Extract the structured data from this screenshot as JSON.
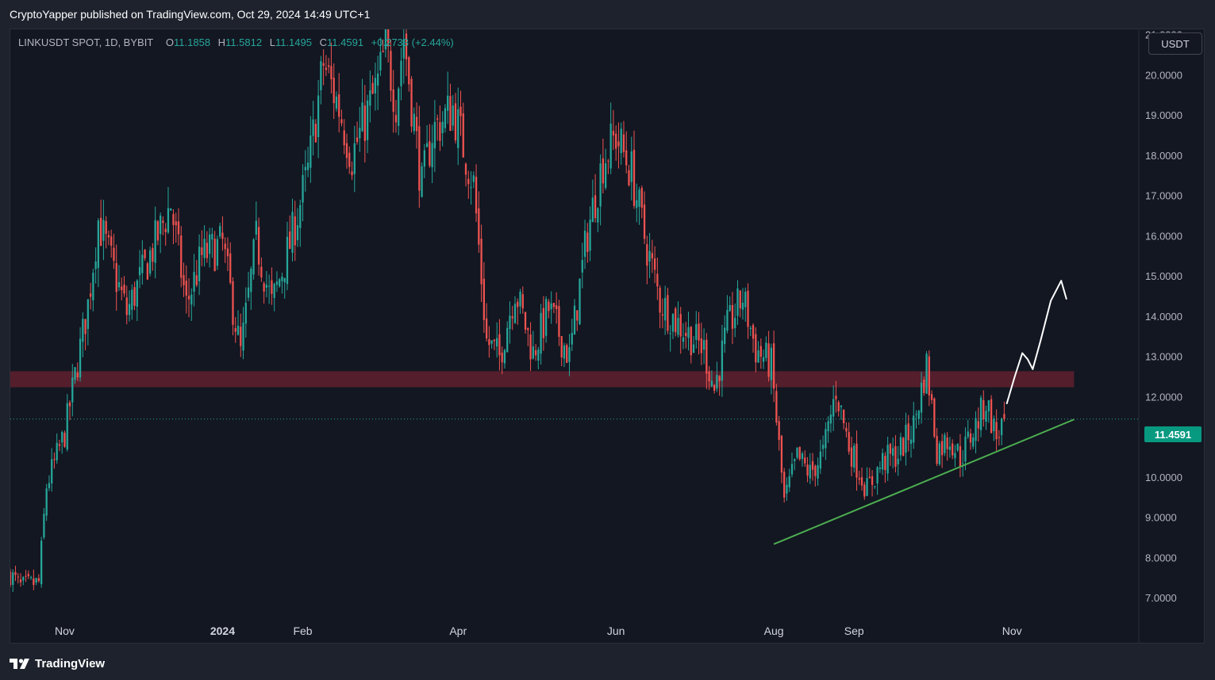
{
  "header": {
    "publish_text": "CryptoYapper published on TradingView.com, Oct 29, 2024 14:49 UTC+1"
  },
  "legend": {
    "symbol": "LINKUSDT SPOT, 1D, BYBIT",
    "open_label": "O",
    "open": "11.1858",
    "high_label": "H",
    "high": "11.5812",
    "low_label": "L",
    "low": "11.1495",
    "close_label": "C",
    "close": "11.4591",
    "change": "+0.2733 (+2.44%)"
  },
  "currency_button": "USDT",
  "current_price_label": "11.4591",
  "footer": {
    "brand": "TradingView"
  },
  "colors": {
    "up": "#26a69a",
    "down": "#ef5350",
    "background": "#131722",
    "resistance_zone": "#5c1f2d",
    "trendline": "#4caf50",
    "annotation_arrow": "#ffffff"
  },
  "chart_data": {
    "type": "candlestick",
    "symbol": "LINKUSDT",
    "interval": "1D",
    "exchange": "BYBIT",
    "x_axis": {
      "ticks": [
        "Nov",
        "2024",
        "Feb",
        "Apr",
        "Jun",
        "Aug",
        "Sep",
        "Nov"
      ],
      "range": [
        "2023-10-11",
        "2024-12-20"
      ]
    },
    "y_axis": {
      "ticks": [
        "7.0000",
        "8.0000",
        "9.0000",
        "10.0000",
        "11.0000",
        "12.0000",
        "13.0000",
        "14.0000",
        "15.0000",
        "16.0000",
        "17.0000",
        "18.0000",
        "19.0000",
        "20.0000",
        "21.0000"
      ],
      "range": [
        6.45,
        21.15
      ]
    },
    "close_path": [
      {
        "date": "2023-10-11",
        "value": 7.6
      },
      {
        "date": "2023-10-15",
        "value": 7.3
      },
      {
        "date": "2023-10-22",
        "value": 7.4
      },
      {
        "date": "2023-10-25",
        "value": 9.8
      },
      {
        "date": "2023-11-01",
        "value": 11.1
      },
      {
        "date": "2023-11-10",
        "value": 14.3
      },
      {
        "date": "2023-11-14",
        "value": 16.4
      },
      {
        "date": "2023-11-25",
        "value": 14.1
      },
      {
        "date": "2023-12-05",
        "value": 15.7
      },
      {
        "date": "2023-12-12",
        "value": 16.8
      },
      {
        "date": "2023-12-18",
        "value": 14.3
      },
      {
        "date": "2023-12-24",
        "value": 15.5
      },
      {
        "date": "2024-01-01",
        "value": 15.8
      },
      {
        "date": "2024-01-08",
        "value": 13.1
      },
      {
        "date": "2024-01-14",
        "value": 15.9
      },
      {
        "date": "2024-01-20",
        "value": 14.3
      },
      {
        "date": "2024-01-27",
        "value": 15.8
      },
      {
        "date": "2024-02-03",
        "value": 17.6
      },
      {
        "date": "2024-02-09",
        "value": 20.3
      },
      {
        "date": "2024-02-15",
        "value": 19.2
      },
      {
        "date": "2024-02-20",
        "value": 18.0
      },
      {
        "date": "2024-03-01",
        "value": 19.8
      },
      {
        "date": "2024-03-04",
        "value": 20.7
      },
      {
        "date": "2024-03-08",
        "value": 19.4
      },
      {
        "date": "2024-03-11",
        "value": 21.0
      },
      {
        "date": "2024-03-18",
        "value": 17.2
      },
      {
        "date": "2024-03-22",
        "value": 18.6
      },
      {
        "date": "2024-03-30",
        "value": 19.2
      },
      {
        "date": "2024-04-07",
        "value": 17.3
      },
      {
        "date": "2024-04-12",
        "value": 13.4
      },
      {
        "date": "2024-04-17",
        "value": 13.0
      },
      {
        "date": "2024-04-23",
        "value": 14.7
      },
      {
        "date": "2024-04-30",
        "value": 13.1
      },
      {
        "date": "2024-05-06",
        "value": 14.2
      },
      {
        "date": "2024-05-14",
        "value": 13.0
      },
      {
        "date": "2024-05-21",
        "value": 16.1
      },
      {
        "date": "2024-05-27",
        "value": 17.9
      },
      {
        "date": "2024-06-01",
        "value": 18.5
      },
      {
        "date": "2024-06-07",
        "value": 17.6
      },
      {
        "date": "2024-06-12",
        "value": 16.0
      },
      {
        "date": "2024-06-18",
        "value": 14.4
      },
      {
        "date": "2024-06-24",
        "value": 13.9
      },
      {
        "date": "2024-07-05",
        "value": 13.2
      },
      {
        "date": "2024-07-09",
        "value": 12.2
      },
      {
        "date": "2024-07-14",
        "value": 13.7
      },
      {
        "date": "2024-07-20",
        "value": 14.5
      },
      {
        "date": "2024-07-25",
        "value": 13.2
      },
      {
        "date": "2024-07-31",
        "value": 12.8
      },
      {
        "date": "2024-08-05",
        "value": 9.4
      },
      {
        "date": "2024-08-10",
        "value": 10.5
      },
      {
        "date": "2024-08-15",
        "value": 10.1
      },
      {
        "date": "2024-08-20",
        "value": 10.6
      },
      {
        "date": "2024-08-25",
        "value": 12.2
      },
      {
        "date": "2024-08-30",
        "value": 10.8
      },
      {
        "date": "2024-09-06",
        "value": 9.7
      },
      {
        "date": "2024-09-12",
        "value": 10.4
      },
      {
        "date": "2024-09-18",
        "value": 10.6
      },
      {
        "date": "2024-09-24",
        "value": 11.3
      },
      {
        "date": "2024-09-29",
        "value": 12.8
      },
      {
        "date": "2024-10-03",
        "value": 10.7
      },
      {
        "date": "2024-10-08",
        "value": 11.0
      },
      {
        "date": "2024-10-12",
        "value": 10.5
      },
      {
        "date": "2024-10-18",
        "value": 11.3
      },
      {
        "date": "2024-10-22",
        "value": 11.9
      },
      {
        "date": "2024-10-26",
        "value": 11.0
      },
      {
        "date": "2024-10-29",
        "value": 11.4591
      }
    ],
    "resistance_zone": {
      "from": "2023-10-11",
      "to": "2024-11-25",
      "low": 12.25,
      "high": 12.65
    },
    "current_price": 11.4591,
    "trendline": {
      "start": {
        "date": "2024-08-01",
        "value": 8.35
      },
      "end": {
        "date": "2024-11-25",
        "value": 11.45
      }
    },
    "projection_arrow": [
      {
        "date": "2024-10-30",
        "value": 11.85
      },
      {
        "date": "2024-11-02",
        "value": 12.5
      },
      {
        "date": "2024-11-05",
        "value": 13.1
      },
      {
        "date": "2024-11-07",
        "value": 12.95
      },
      {
        "date": "2024-11-09",
        "value": 12.7
      },
      {
        "date": "2024-11-12",
        "value": 13.4
      },
      {
        "date": "2024-11-16",
        "value": 14.4
      },
      {
        "date": "2024-11-20",
        "value": 14.9
      },
      {
        "date": "2024-11-22",
        "value": 14.45
      }
    ]
  }
}
